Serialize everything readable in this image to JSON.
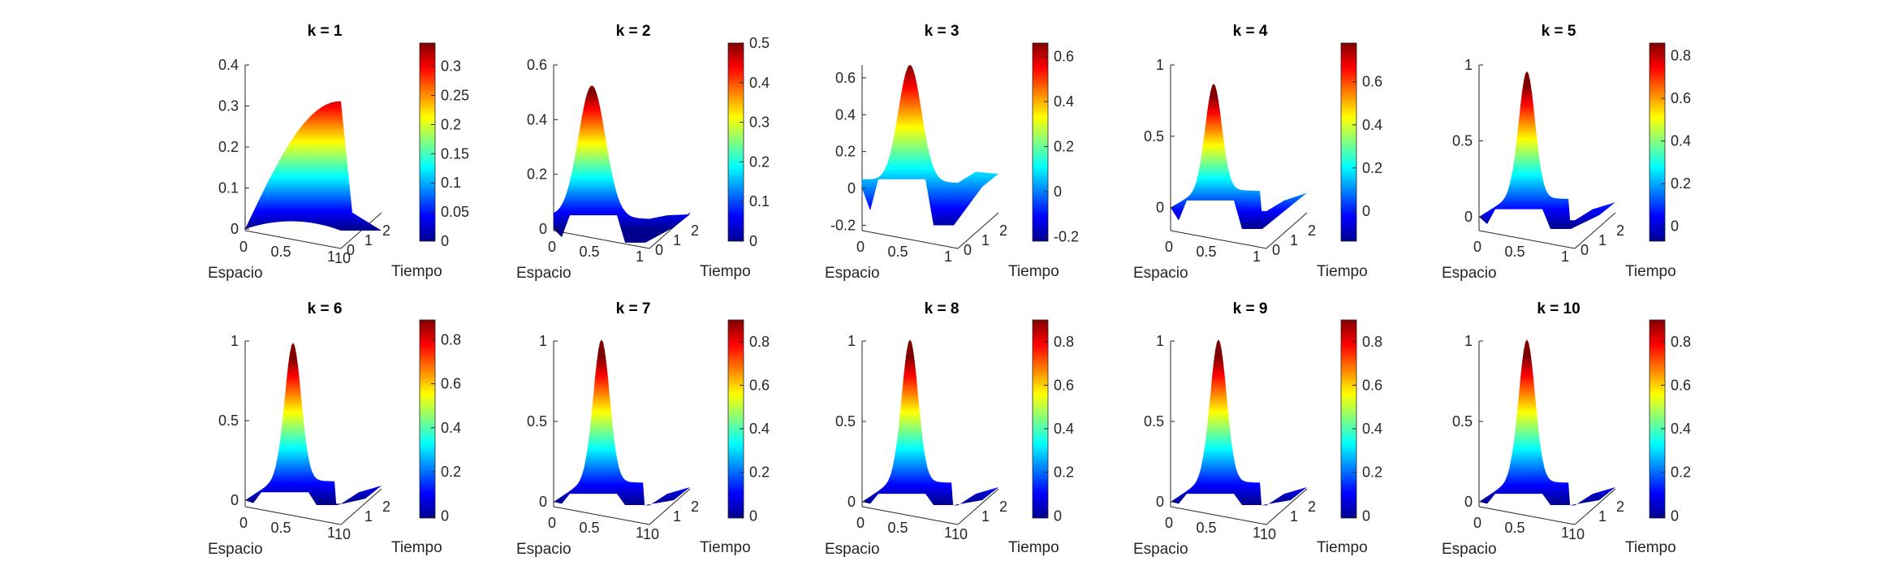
{
  "chart_data": {
    "type": "surface3d-grid",
    "colormap": "jet",
    "jet_colors": [
      "#00008f",
      "#0000ff",
      "#0080ff",
      "#00ffff",
      "#80ff80",
      "#ffff00",
      "#ff8000",
      "#ff0000",
      "#800000"
    ],
    "xlabel": "Espacio",
    "ylabel": "Tiempo",
    "subplots": [
      {
        "title": "k = 1",
        "zlim": [
          0,
          0.4
        ],
        "zticks": [
          "0",
          "0.1",
          "0.2",
          "0.3",
          "0.4"
        ],
        "zvals": [
          0,
          0.1,
          0.2,
          0.3,
          0.4
        ],
        "xticks": [
          "0",
          "0.5",
          "1"
        ],
        "yticks": [
          "0",
          "1",
          "2"
        ],
        "xy_corner_label": "10",
        "clim": [
          0,
          0.34
        ],
        "cticks": [
          "0",
          "0.05",
          "0.1",
          "0.15",
          "0.2",
          "0.25",
          "0.3"
        ],
        "cvals": [
          0,
          0.05,
          0.1,
          0.15,
          0.2,
          0.25,
          0.3
        ],
        "peak": 0.32,
        "min": 0,
        "shape": "k1"
      },
      {
        "title": "k = 2",
        "zlim": [
          0,
          0.6
        ],
        "zticks": [
          "0",
          "0.2",
          "0.4",
          "0.6"
        ],
        "zvals": [
          0,
          0.2,
          0.4,
          0.6
        ],
        "xticks": [
          "0",
          "0.5",
          "1"
        ],
        "yticks": [
          "0",
          "1",
          "2"
        ],
        "xy_corner_label": "",
        "clim": [
          0,
          0.5
        ],
        "cticks": [
          "0",
          "0.1",
          "0.2",
          "0.3",
          "0.4",
          "0.5"
        ],
        "cvals": [
          0,
          0.1,
          0.2,
          0.3,
          0.4,
          0.5
        ],
        "peak": 0.48,
        "min": -0.05,
        "shape": "k2"
      },
      {
        "title": "k = 3",
        "zlim": [
          -0.22,
          0.67
        ],
        "zticks": [
          "-0.2",
          "0",
          "0.2",
          "0.4",
          "0.6"
        ],
        "zvals": [
          -0.2,
          0,
          0.2,
          0.4,
          0.6
        ],
        "xticks": [
          "0",
          "0.5",
          "1"
        ],
        "yticks": [
          "0",
          "1",
          "2"
        ],
        "xy_corner_label": "",
        "clim": [
          -0.22,
          0.66
        ],
        "cticks": [
          "-0.2",
          "0",
          "0.2",
          "0.4",
          "0.6"
        ],
        "cvals": [
          -0.2,
          0,
          0.2,
          0.4,
          0.6
        ],
        "peak": 0.63,
        "min": -0.2,
        "shape": "k3"
      },
      {
        "title": "k = 4",
        "zlim": [
          -0.15,
          1
        ],
        "zticks": [
          "0",
          "0.5",
          "1"
        ],
        "zvals": [
          0,
          0.5,
          1
        ],
        "xticks": [
          "0",
          "0.5",
          "1"
        ],
        "yticks": [
          "0",
          "1",
          "2"
        ],
        "xy_corner_label": "",
        "clim": [
          -0.14,
          0.78
        ],
        "cticks": [
          "0",
          "0.2",
          "0.4",
          "0.6"
        ],
        "cvals": [
          0,
          0.2,
          0.4,
          0.6
        ],
        "peak": 0.74,
        "min": -0.15,
        "shape": "k4"
      },
      {
        "title": "k = 5",
        "zlim": [
          -0.08,
          1
        ],
        "zticks": [
          "0",
          "0.5",
          "1"
        ],
        "zvals": [
          0,
          0.5,
          1
        ],
        "xticks": [
          "0",
          "0.5",
          "1"
        ],
        "yticks": [
          "0",
          "1",
          "2"
        ],
        "xy_corner_label": "",
        "clim": [
          -0.07,
          0.86
        ],
        "cticks": [
          "0",
          "0.2",
          "0.4",
          "0.6",
          "0.8"
        ],
        "cvals": [
          0,
          0.2,
          0.4,
          0.6,
          0.8
        ],
        "peak": 0.83,
        "min": -0.08,
        "shape": "peak"
      },
      {
        "title": "k = 6",
        "zlim": [
          -0.03,
          1
        ],
        "zticks": [
          "0",
          "0.5",
          "1"
        ],
        "zvals": [
          0,
          0.5,
          1
        ],
        "xticks": [
          "0",
          "0.5",
          "1"
        ],
        "yticks": [
          "1",
          "2"
        ],
        "xy_corner_label": "10",
        "clim": [
          -0.01,
          0.89
        ],
        "cticks": [
          "0",
          "0.2",
          "0.4",
          "0.6",
          "0.8"
        ],
        "cvals": [
          0,
          0.2,
          0.4,
          0.6,
          0.8
        ],
        "peak": 0.86,
        "min": -0.03,
        "shape": "peak"
      },
      {
        "title": "k = 7",
        "zlim": [
          -0.02,
          1
        ],
        "zticks": [
          "0",
          "0.5",
          "1"
        ],
        "zvals": [
          0,
          0.5,
          1
        ],
        "xticks": [
          "0",
          "0.5",
          "1"
        ],
        "yticks": [
          "1",
          "2"
        ],
        "xy_corner_label": "10",
        "clim": [
          -0.01,
          0.9
        ],
        "cticks": [
          "0",
          "0.2",
          "0.4",
          "0.6",
          "0.8"
        ],
        "cvals": [
          0,
          0.2,
          0.4,
          0.6,
          0.8
        ],
        "peak": 0.88,
        "min": -0.02,
        "shape": "peak"
      },
      {
        "title": "k = 8",
        "zlim": [
          -0.02,
          1
        ],
        "zticks": [
          "0",
          "0.5",
          "1"
        ],
        "zvals": [
          0,
          0.5,
          1
        ],
        "xticks": [
          "0",
          "0.5",
          "1"
        ],
        "yticks": [
          "1",
          "2"
        ],
        "xy_corner_label": "10",
        "clim": [
          -0.01,
          0.9
        ],
        "cticks": [
          "0",
          "0.2",
          "0.4",
          "0.6",
          "0.8"
        ],
        "cvals": [
          0,
          0.2,
          0.4,
          0.6,
          0.8
        ],
        "peak": 0.88,
        "min": -0.02,
        "shape": "peak"
      },
      {
        "title": "k = 9",
        "zlim": [
          -0.02,
          1
        ],
        "zticks": [
          "0",
          "0.5",
          "1"
        ],
        "zvals": [
          0,
          0.5,
          1
        ],
        "xticks": [
          "0",
          "0.5",
          "1"
        ],
        "yticks": [
          "1",
          "2"
        ],
        "xy_corner_label": "10",
        "clim": [
          -0.01,
          0.9
        ],
        "cticks": [
          "0",
          "0.2",
          "0.4",
          "0.6",
          "0.8"
        ],
        "cvals": [
          0,
          0.2,
          0.4,
          0.6,
          0.8
        ],
        "peak": 0.88,
        "min": -0.02,
        "shape": "peak"
      },
      {
        "title": "k = 10",
        "zlim": [
          -0.02,
          1
        ],
        "zticks": [
          "0",
          "0.5",
          "1"
        ],
        "zvals": [
          0,
          0.5,
          1
        ],
        "xticks": [
          "0",
          "0.5",
          "1"
        ],
        "yticks": [
          "1",
          "2"
        ],
        "xy_corner_label": "10",
        "clim": [
          -0.01,
          0.9
        ],
        "cticks": [
          "0",
          "0.2",
          "0.4",
          "0.6",
          "0.8"
        ],
        "cvals": [
          0,
          0.2,
          0.4,
          0.6,
          0.8
        ],
        "peak": 0.88,
        "min": -0.02,
        "shape": "peak"
      }
    ]
  }
}
